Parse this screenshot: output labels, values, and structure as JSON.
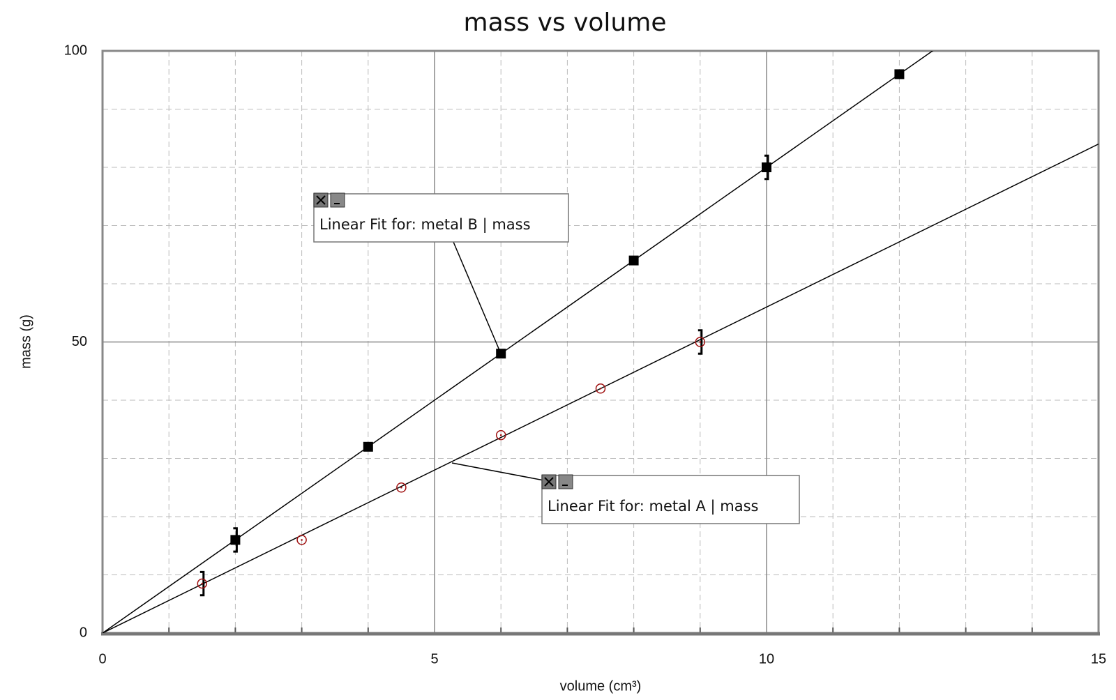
{
  "chart_data": {
    "type": "scatter",
    "title": "mass vs volume",
    "x_label": "volume (cm³)",
    "y_label": "mass (g)",
    "xlim": [
      0,
      15
    ],
    "ylim": [
      0,
      100
    ],
    "xticks": [
      0,
      5,
      10,
      15
    ],
    "yticks": [
      0,
      50,
      100
    ],
    "xminor": [
      1,
      2,
      3,
      4,
      6,
      7,
      8,
      9,
      11,
      12,
      13,
      14
    ],
    "yminor": [
      10,
      20,
      30,
      40,
      60,
      70,
      80,
      90
    ],
    "grid": true,
    "series": [
      {
        "name": "metal B",
        "color": "#000000",
        "marker": "square",
        "x": [
          2,
          4,
          6,
          8,
          10,
          12
        ],
        "values": [
          16,
          32,
          48,
          64,
          80,
          96
        ],
        "errors": [
          2,
          null,
          null,
          null,
          2,
          null
        ],
        "fit": {
          "slope": 8,
          "intercept": 0
        }
      },
      {
        "name": "metal A",
        "color": "#a01010",
        "marker": "circle",
        "x": [
          1.5,
          3,
          4.5,
          6,
          7.5,
          9
        ],
        "values": [
          8.5,
          16,
          25,
          34,
          42,
          50
        ],
        "errors": [
          2,
          null,
          null,
          null,
          null,
          2
        ],
        "fit": {
          "slope": 5.6,
          "intercept": 0
        }
      }
    ],
    "annotations": [
      "Linear Fit for: metal B | mass",
      "Linear Fit for: metal A | mass"
    ]
  }
}
